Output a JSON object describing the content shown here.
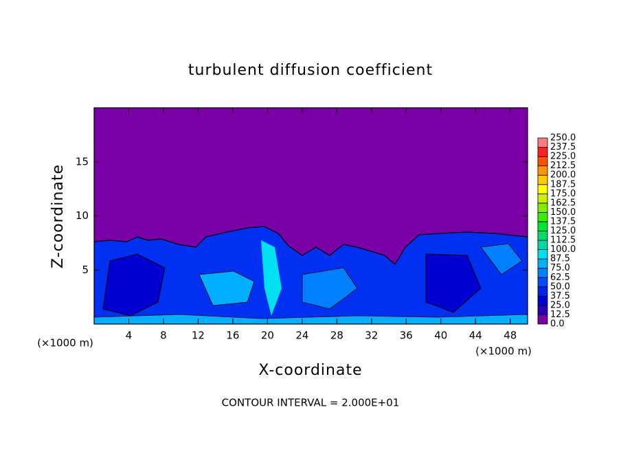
{
  "chart_data": {
    "type": "contour",
    "title": "turbulent diffusion coefficient",
    "xlabel": "X-coordinate",
    "ylabel": "Z-coordinate",
    "x_unit": "(×1000 m)",
    "annotation": "CONTOUR INTERVAL = 2.000E+01",
    "xlim": [
      0,
      50
    ],
    "xticks": [
      4,
      8,
      12,
      16,
      20,
      24,
      28,
      32,
      36,
      40,
      44,
      48
    ],
    "ylim": [
      0,
      20
    ],
    "yticks": [
      5,
      10,
      15
    ],
    "colorbar": {
      "levels": [
        {
          "value": 0,
          "label": "0.0"
        },
        12.5,
        {
          "value": 25,
          "label": "25.0"
        },
        37.5,
        {
          "value": 50,
          "label": "50.0"
        },
        62.5,
        {
          "value": 75,
          "label": "75.0"
        },
        87.5,
        {
          "value": 100,
          "label": "100.0"
        },
        112.5,
        {
          "value": 125,
          "label": "125.0"
        },
        137.5,
        {
          "value": 150,
          "label": "150.0"
        },
        162.5,
        {
          "value": 175,
          "label": "175.0"
        },
        187.5,
        {
          "value": 200,
          "label": "200.0"
        },
        212.5,
        {
          "value": 225,
          "label": "225.0"
        },
        237.5,
        {
          "value": 250,
          "label": "250.0"
        }
      ],
      "colors": [
        "#7a00a6",
        "#2a00b8",
        "#0000d0",
        "#0024ee",
        "#004cff",
        "#0080ff",
        "#00b0ff",
        "#00e0f0",
        "#00d8a8",
        "#00dc6c",
        "#00e632",
        "#34f000",
        "#7cf000",
        "#c8f000",
        "#ffff00",
        "#ffcc00",
        "#ff9600",
        "#ff5000",
        "#ff2020",
        "#ff7c7c"
      ]
    }
  }
}
